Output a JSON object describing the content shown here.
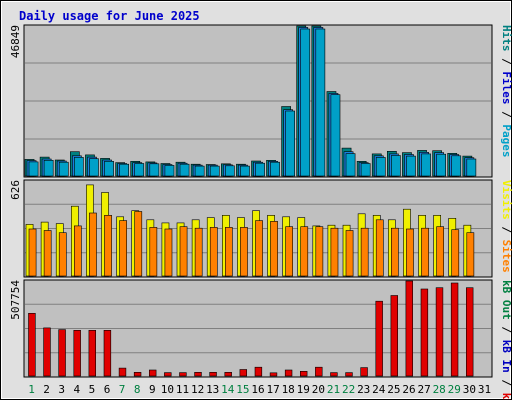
{
  "chart_data": {
    "type": "bar",
    "title": "Daily usage for June 2025",
    "colors": {
      "outer_bg": "#e0e0e0",
      "plot_bg": "#c0c0c0",
      "grid": "#808080",
      "title": "#0000cc",
      "hits": "#00a0c8",
      "files": "#1880e0",
      "pages": "#008080",
      "visits": "#f0f000",
      "sites": "#ff8000",
      "kb_in": "#0000c0",
      "kb_out": "#008040",
      "kb_f": "#e00000",
      "weekend_label": "#008040",
      "weekday_label": "#000000"
    },
    "days": [
      "1",
      "2",
      "3",
      "4",
      "5",
      "6",
      "7",
      "8",
      "9",
      "10",
      "11",
      "12",
      "13",
      "14",
      "15",
      "16",
      "17",
      "18",
      "19",
      "20",
      "21",
      "22",
      "23",
      "24",
      "25",
      "26",
      "27",
      "28",
      "29",
      "30",
      "31"
    ],
    "weekend_days": [
      "1",
      "7",
      "8",
      "14",
      "15",
      "21",
      "22",
      "28",
      "29"
    ],
    "panels": [
      {
        "id": "hits",
        "max_label": "46849",
        "ylim": [
          0,
          46849
        ],
        "right_label_parts": [
          {
            "text": "Pages",
            "color": "#00a0c8"
          },
          {
            "text": " / ",
            "color": "#000000"
          },
          {
            "text": "Files",
            "color": "#0000cc"
          },
          {
            "text": " / ",
            "color": "#000000"
          },
          {
            "text": "Hits",
            "color": "#008080"
          }
        ],
        "series": [
          {
            "name": "Hits",
            "color": "#008080",
            "values": [
              5200,
              5900,
              5000,
              7600,
              6600,
              5500,
              4200,
              4600,
              4400,
              3900,
              4300,
              3700,
              3600,
              3800,
              3700,
              4700,
              4900,
              21700,
              46849,
              46849,
              26400,
              8700,
              4600,
              6900,
              7700,
              7300,
              8000,
              7900,
              7100,
              6200,
              0
            ]
          },
          {
            "name": "Files",
            "color": "#1880e0",
            "values": [
              4800,
              5300,
              4700,
              6300,
              5900,
              5000,
              3900,
              4200,
              4100,
              3600,
              4000,
              3400,
              3400,
              3500,
              3400,
              4300,
              4600,
              20700,
              46400,
              46400,
              25800,
              7600,
              4200,
              6300,
              6900,
              6700,
              7400,
              7300,
              6700,
              5700,
              0
            ]
          },
          {
            "name": "Pages",
            "color": "#00a0c8",
            "values": [
              4400,
              4900,
              4300,
              5800,
              5400,
              4600,
              3700,
              3900,
              3800,
              3300,
              3700,
              3100,
              3100,
              3200,
              3100,
              4000,
              4300,
              20300,
              45900,
              45900,
              25400,
              7000,
              3900,
              5800,
              6400,
              6200,
              6900,
              6800,
              6300,
              5300,
              0
            ]
          }
        ]
      },
      {
        "id": "visits",
        "max_label": "626",
        "ylim": [
          0,
          626
        ],
        "right_label_parts": [
          {
            "text": "Sites",
            "color": "#ff8000"
          },
          {
            "text": " / ",
            "color": "#000000"
          },
          {
            "text": "Visits",
            "color": "#f0f000"
          }
        ],
        "series": [
          {
            "name": "Visits",
            "color": "#f0f000",
            "values": [
              340,
              355,
              345,
              460,
              600,
              550,
              390,
              430,
              370,
              350,
              350,
              370,
              385,
              400,
              385,
              430,
              400,
              390,
              385,
              330,
              335,
              335,
              410,
              400,
              370,
              440,
              400,
              400,
              380,
              335,
              0
            ]
          },
          {
            "name": "Sites",
            "color": "#ff8000",
            "values": [
              310,
              300,
              285,
              330,
              415,
              400,
              365,
              425,
              320,
              310,
              325,
              315,
              320,
              320,
              320,
              365,
              360,
              325,
              325,
              325,
              315,
              300,
              315,
              370,
              315,
              310,
              315,
              325,
              305,
              285,
              0
            ]
          }
        ]
      },
      {
        "id": "kb",
        "max_label": "507754",
        "ylim": [
          0,
          507754
        ],
        "right_label_parts": [
          {
            "text": "kB F",
            "color": "#e00000"
          },
          {
            "text": " / ",
            "color": "#000000"
          },
          {
            "text": "kB In",
            "color": "#0000c0"
          },
          {
            "text": " / ",
            "color": "#000000"
          },
          {
            "text": "kB Out",
            "color": "#008040"
          }
        ],
        "series": [
          {
            "name": "kB F",
            "color": "#e00000",
            "values": [
              335000,
              257000,
              248000,
              244000,
              244000,
              244000,
              42000,
              20000,
              32000,
              18000,
              18000,
              20000,
              20000,
              20000,
              35000,
              47000,
              17000,
              32000,
              25000,
              47000,
              18000,
              18000,
              45000,
              400000,
              430000,
              507754,
              465000,
              472000,
              497000,
              472000,
              0
            ]
          }
        ]
      }
    ]
  }
}
